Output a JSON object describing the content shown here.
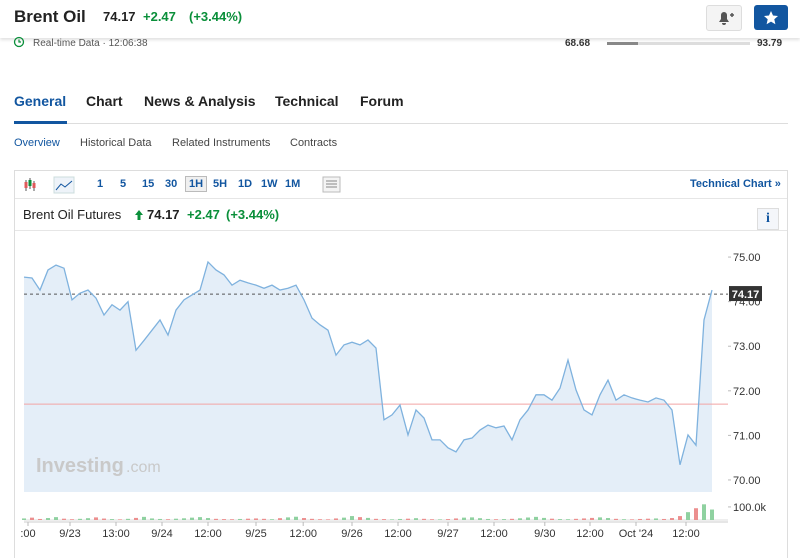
{
  "header": {
    "title": "Brent Oil",
    "price": 74.17,
    "change": "+2.47",
    "change_pct": "(+3.44%)",
    "status": "Real-time Data",
    "time": "12:06:38",
    "range_low": 68.68,
    "range_high": 93.79
  },
  "tabs": [
    "General",
    "Chart",
    "News & Analysis",
    "Technical",
    "Forum"
  ],
  "subtabs": [
    "Overview",
    "Historical Data",
    "Related Instruments",
    "Contracts"
  ],
  "intervals": [
    "1",
    "5",
    "15",
    "30",
    "1H",
    "5H",
    "1D",
    "1W",
    "1M"
  ],
  "active_interval": "1H",
  "technical_link": "Technical Chart »",
  "chart_data": {
    "type": "line",
    "title": "Brent Oil Futures",
    "price": 74.17,
    "change": "+2.47",
    "change_pct": "(+3.44%)",
    "color": "#7fb2de",
    "area_color": "#e4eef8",
    "values": [
      74.55,
      74.53,
      74.26,
      74.71,
      74.82,
      74.75,
      74.04,
      74.19,
      74.26,
      74.08,
      73.7,
      73.93,
      73.81,
      74.0,
      72.91,
      73.13,
      73.36,
      73.59,
      73.25,
      73.81,
      74.04,
      74.15,
      74.26,
      74.89,
      74.71,
      74.6,
      74.37,
      74.48,
      74.42,
      74.37,
      74.3,
      74.37,
      74.26,
      74.3,
      74.37,
      74.04,
      73.63,
      73.48,
      73.36,
      72.8,
      73.03,
      73.09,
      73.03,
      73.14,
      72.96,
      71.35,
      71.46,
      71.68,
      71.01,
      71.57,
      71.39,
      70.9,
      70.9,
      70.72,
      70.63,
      70.9,
      70.94,
      71.12,
      71.23,
      71.17,
      71.21,
      70.9,
      71.35,
      71.57,
      71.91,
      71.91,
      71.79,
      72.06,
      72.69,
      72.02,
      71.57,
      71.46,
      71.91,
      72.24,
      71.79,
      71.91,
      71.84,
      71.79,
      71.75,
      71.84,
      71.79,
      71.57,
      70.34,
      71.01,
      70.78,
      73.59,
      74.26
    ],
    "xlim": [
      0,
      86
    ],
    "xticks": [
      {
        "value": 0.5,
        "label": ":00"
      },
      {
        "value": 5.75,
        "label": "9/23"
      },
      {
        "value": 11.5,
        "label": "13:00"
      },
      {
        "value": 17.25,
        "label": "9/24"
      },
      {
        "value": 23,
        "label": "12:00"
      },
      {
        "value": 29,
        "label": "9/25"
      },
      {
        "value": 34.9,
        "label": "12:00"
      },
      {
        "value": 41,
        "label": "9/26"
      },
      {
        "value": 46.75,
        "label": "12:00"
      },
      {
        "value": 53,
        "label": "9/27"
      },
      {
        "value": 58.75,
        "label": "12:00"
      },
      {
        "value": 65.1,
        "label": "9/30"
      },
      {
        "value": 70.75,
        "label": "12:00"
      },
      {
        "value": 76.5,
        "label": "Oct '24"
      },
      {
        "value": 82.75,
        "label": "12:00"
      }
    ],
    "ylim": [
      69.73,
      75.45
    ],
    "yticks": [
      {
        "value": 70,
        "label": "70.00"
      },
      {
        "value": 71,
        "label": "71.00"
      },
      {
        "value": 72,
        "label": "72.00"
      },
      {
        "value": 73,
        "label": "73.00"
      },
      {
        "value": 74,
        "label": "74.00"
      },
      {
        "value": 75,
        "label": "75.00"
      }
    ],
    "prev_close": 71.7,
    "volume": {
      "values": [
        12000,
        18000,
        8000,
        15000,
        22000,
        10000,
        6000,
        9000,
        14000,
        20000,
        11000,
        7000,
        5000,
        9000,
        16000,
        24000,
        12000,
        8000,
        6000,
        10000,
        13000,
        18000,
        22000,
        15000,
        9000,
        7000,
        6000,
        8000,
        10000,
        12000,
        9000,
        6000,
        14000,
        20000,
        25000,
        15000,
        9000,
        6000,
        5000,
        12000,
        18000,
        30000,
        22000,
        16000,
        9000,
        7000,
        5000,
        8000,
        10000,
        14000,
        9000,
        6000,
        5000,
        7000,
        12000,
        18000,
        20000,
        14000,
        8000,
        6000,
        7000,
        9000,
        13000,
        19000,
        24000,
        16000,
        10000,
        7000,
        6000,
        9000,
        12000,
        16000,
        20000,
        15000,
        9000,
        6000,
        5000,
        8000,
        10000,
        12000,
        8000,
        15000,
        30000,
        60000,
        90000,
        120000,
        80000
      ],
      "ylim": [
        0,
        130000
      ],
      "yticks": [
        {
          "value": 100000,
          "label": "100.0k"
        }
      ]
    },
    "watermark": [
      "Investing",
      ".com"
    ]
  }
}
